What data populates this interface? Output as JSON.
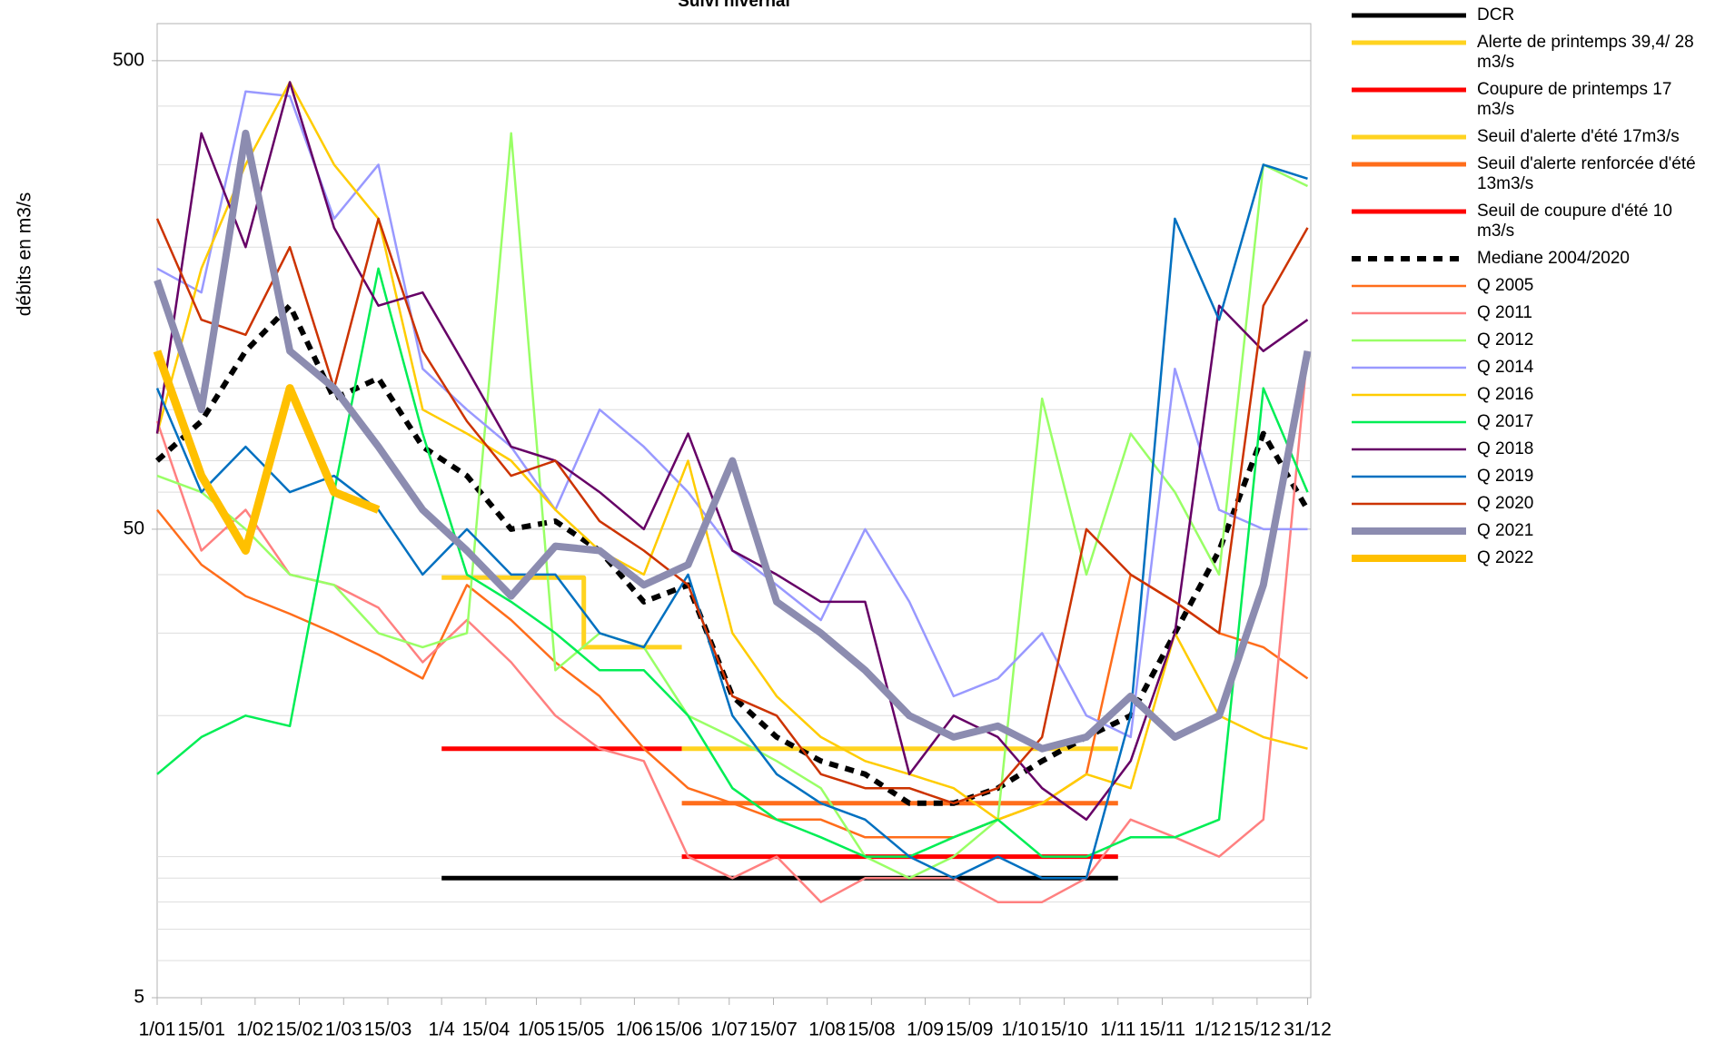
{
  "chart_data": {
    "type": "line",
    "title": "Suivi hivernal",
    "y_label": "débits en m3/s",
    "log_y": true,
    "grid": true,
    "legend": "right",
    "xlim": [
      0,
      365
    ],
    "xticks": [
      {
        "value": 0,
        "label": "1/01"
      },
      {
        "value": 14,
        "label": "15/01"
      },
      {
        "value": 31,
        "label": "1/02"
      },
      {
        "value": 45,
        "label": "15/02"
      },
      {
        "value": 59,
        "label": "1/03"
      },
      {
        "value": 73,
        "label": "15/03"
      },
      {
        "value": 90,
        "label": "1/4"
      },
      {
        "value": 104,
        "label": "15/04"
      },
      {
        "value": 120,
        "label": "1/05"
      },
      {
        "value": 134,
        "label": "15/05"
      },
      {
        "value": 151,
        "label": "1/06"
      },
      {
        "value": 165,
        "label": "15/06"
      },
      {
        "value": 181,
        "label": "1/07"
      },
      {
        "value": 195,
        "label": "15/07"
      },
      {
        "value": 212,
        "label": "1/08"
      },
      {
        "value": 226,
        "label": "15/08"
      },
      {
        "value": 243,
        "label": "1/09"
      },
      {
        "value": 257,
        "label": "15/09"
      },
      {
        "value": 273,
        "label": "1/10"
      },
      {
        "value": 287,
        "label": "15/10"
      },
      {
        "value": 304,
        "label": "1/11"
      },
      {
        "value": 318,
        "label": "15/11"
      },
      {
        "value": 334,
        "label": "1/12"
      },
      {
        "value": 348,
        "label": "15/12"
      },
      {
        "value": 364,
        "label": "31/12"
      }
    ],
    "ylim": [
      5,
      600
    ],
    "yticks": [
      5,
      50,
      500
    ],
    "yminorticks": [
      6,
      7,
      8,
      9,
      10,
      20,
      30,
      40,
      60,
      70,
      80,
      90,
      100,
      200,
      300,
      400
    ],
    "x": [
      0,
      14,
      28,
      42,
      56,
      70,
      84,
      98,
      112,
      126,
      140,
      154,
      168,
      182,
      196,
      210,
      224,
      238,
      252,
      266,
      280,
      294,
      308,
      322,
      336,
      350,
      364
    ],
    "series": [
      {
        "name": "DCR",
        "color": "#000000",
        "line_width": 5,
        "x": [
          90,
          304
        ],
        "values": [
          9,
          9
        ]
      },
      {
        "name": "Alerte de printemps 39,4/ 28 m3/s",
        "color": "#ffd320",
        "line_width": 5,
        "x": [
          90,
          135,
          135,
          166
        ],
        "values": [
          39.4,
          39.4,
          28,
          28
        ]
      },
      {
        "name": "Coupure de printemps 17 m3/s",
        "color": "#ff0000",
        "line_width": 5,
        "x": [
          90,
          166
        ],
        "values": [
          17,
          17
        ]
      },
      {
        "name": "Seuil d'alerte d'été 17m3/s",
        "color": "#ffd320",
        "line_width": 5,
        "x": [
          166,
          304
        ],
        "values": [
          17,
          17
        ]
      },
      {
        "name": "Seuil d'alerte renforcée d'été 13m3/s",
        "color": "#ff6d1b",
        "line_width": 5,
        "x": [
          166,
          304
        ],
        "values": [
          13,
          13
        ]
      },
      {
        "name": "Seuil de coupure d'été 10 m3/s",
        "color": "#ff0000",
        "line_width": 5,
        "x": [
          166,
          304
        ],
        "values": [
          10,
          10
        ]
      },
      {
        "name": "Mediane 2004/2020",
        "color": "#000000",
        "line_width": 6,
        "dashed": true,
        "values": [
          70,
          85,
          120,
          150,
          95,
          105,
          75,
          65,
          50,
          52,
          45,
          35,
          38,
          22,
          18,
          16,
          15,
          13,
          13,
          14,
          16,
          18,
          20,
          30,
          45,
          80,
          55
        ]
      },
      {
        "name": "Q 2005",
        "color": "#ff6d1b",
        "line_width": 2.5,
        "values": [
          55,
          42,
          36,
          33,
          30,
          27,
          24,
          38,
          32,
          26,
          22,
          17,
          14,
          13,
          12,
          12,
          11,
          11,
          11,
          12,
          13,
          15,
          40,
          35,
          30,
          28,
          24
        ]
      },
      {
        "name": "Q 2011",
        "color": "#ff8080",
        "line_width": 2.5,
        "values": [
          85,
          45,
          55,
          40,
          38,
          34,
          26,
          32,
          26,
          20,
          17,
          16,
          10,
          9,
          10,
          8,
          9,
          9,
          9,
          8,
          8,
          9,
          12,
          11,
          10,
          12,
          120
        ]
      },
      {
        "name": "Q 2012",
        "color": "#99ff66",
        "line_width": 2.5,
        "values": [
          65,
          60,
          50,
          40,
          38,
          30,
          28,
          30,
          350,
          25,
          30,
          28,
          20,
          18,
          16,
          14,
          10,
          9,
          10,
          12,
          95,
          40,
          80,
          60,
          40,
          300,
          270
        ]
      },
      {
        "name": "Q 2014",
        "color": "#9999ff",
        "line_width": 2.5,
        "values": [
          180,
          160,
          430,
          420,
          230,
          300,
          110,
          90,
          75,
          55,
          90,
          75,
          60,
          45,
          38,
          32,
          50,
          35,
          22,
          24,
          30,
          20,
          18,
          110,
          55,
          50,
          50
        ]
      },
      {
        "name": "Q 2016",
        "color": "#ffcc00",
        "line_width": 2.5,
        "values": [
          80,
          180,
          300,
          450,
          300,
          230,
          90,
          80,
          70,
          55,
          45,
          40,
          70,
          30,
          22,
          18,
          16,
          15,
          14,
          12,
          13,
          15,
          14,
          30,
          20,
          18,
          17
        ]
      },
      {
        "name": "Q 2017",
        "color": "#00ee55",
        "line_width": 2.5,
        "values": [
          15,
          18,
          20,
          19,
          60,
          180,
          80,
          40,
          35,
          30,
          25,
          25,
          20,
          14,
          12,
          11,
          10,
          10,
          11,
          12,
          10,
          10,
          11,
          11,
          12,
          100,
          60
        ]
      },
      {
        "name": "Q 2018",
        "color": "#660066",
        "line_width": 2.5,
        "values": [
          80,
          350,
          200,
          450,
          220,
          150,
          160,
          110,
          75,
          70,
          60,
          50,
          80,
          45,
          40,
          35,
          35,
          15,
          20,
          18,
          14,
          12,
          16,
          30,
          150,
          120,
          140
        ]
      },
      {
        "name": "Q 2019",
        "color": "#0070c0",
        "line_width": 2.5,
        "values": [
          100,
          60,
          75,
          60,
          65,
          55,
          40,
          50,
          40,
          40,
          30,
          28,
          40,
          20,
          15,
          13,
          12,
          10,
          9,
          10,
          9,
          9,
          20,
          230,
          140,
          300,
          280
        ]
      },
      {
        "name": "Q 2020",
        "color": "#cc3300",
        "line_width": 2.5,
        "values": [
          230,
          140,
          130,
          200,
          100,
          230,
          120,
          85,
          65,
          70,
          52,
          45,
          38,
          22,
          20,
          15,
          14,
          14,
          13,
          14,
          18,
          50,
          40,
          35,
          30,
          150,
          220
        ]
      },
      {
        "name": "Q 2021",
        "color": "#8c8cb0",
        "line_width": 8,
        "values": [
          170,
          90,
          350,
          120,
          100,
          75,
          55,
          45,
          36,
          46,
          45,
          38,
          42,
          70,
          35,
          30,
          25,
          20,
          18,
          19,
          17,
          18,
          22,
          18,
          20,
          38,
          120
        ]
      },
      {
        "name": "Q 2022",
        "color": "#ffc000",
        "line_width": 9,
        "values": [
          120,
          65,
          45,
          100,
          60,
          55,
          null,
          null,
          null,
          null,
          null,
          null,
          null,
          null,
          null,
          null,
          null,
          null,
          null,
          null,
          null,
          null,
          null,
          null,
          null,
          null,
          null
        ]
      }
    ]
  }
}
